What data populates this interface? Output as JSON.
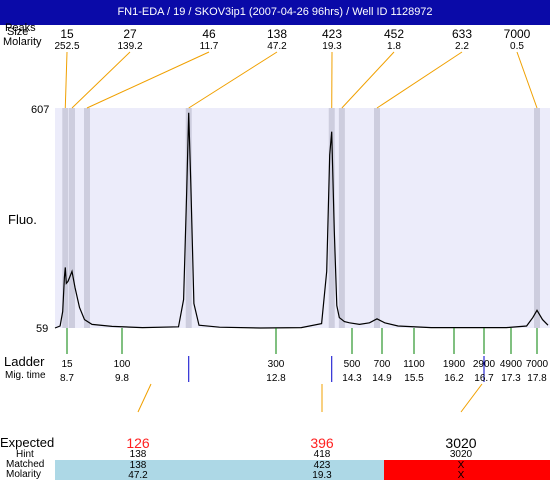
{
  "title": "FN1-EDA / 19 / SKOV3ip1 (2007-04-26 96hrs) / Well ID 1128972",
  "row_labels": {
    "peaks": "Peaks",
    "size": "Size",
    "molarity": "Molarity",
    "fluo": "Fluo.",
    "ladder": "Ladder",
    "mig_time": "Mig. time",
    "expected": "Expected",
    "hint": "Hint",
    "matched": "Matched",
    "bottom_molarity": "Molarity"
  },
  "y_axis": {
    "top_label": "607",
    "bottom_label": "59"
  },
  "top_peaks": [
    {
      "size": "15",
      "molarity": "252.5"
    },
    {
      "size": "27",
      "molarity": "139.2"
    },
    {
      "size": "46",
      "molarity": "11.7"
    },
    {
      "size": "138",
      "molarity": "47.2"
    },
    {
      "size": "423",
      "molarity": "19.3"
    },
    {
      "size": "452",
      "molarity": "1.8"
    },
    {
      "size": "633",
      "molarity": "2.2"
    },
    {
      "size": "7000",
      "molarity": "0.5"
    }
  ],
  "ladder": [
    {
      "size": "15",
      "mig": "8.7"
    },
    {
      "size": "100",
      "mig": "9.8"
    },
    {
      "size": "300",
      "mig": "12.8"
    },
    {
      "size": "500",
      "mig": "14.3"
    },
    {
      "size": "700",
      "mig": "14.9"
    },
    {
      "size": "1100",
      "mig": "15.5"
    },
    {
      "size": "1900",
      "mig": "16.2"
    },
    {
      "size": "2900",
      "mig": "16.7"
    },
    {
      "size": "4900",
      "mig": "17.3"
    },
    {
      "size": "7000",
      "mig": "17.8"
    }
  ],
  "expected": [
    {
      "value": "126",
      "hint": "138",
      "matched": "138",
      "molarity": "47.2",
      "color": "#ff2020",
      "row_color": "#add8e6"
    },
    {
      "value": "396",
      "hint": "418",
      "matched": "423",
      "molarity": "19.3",
      "color": "#ff2020",
      "row_color": "#add8e6"
    },
    {
      "value": "3020",
      "hint": "3020",
      "matched": "X",
      "molarity": "X",
      "color": "#000000",
      "row_color": "#ff0000"
    }
  ],
  "colors": {
    "title_bg": "#0a0aa8",
    "plot_bg": "#ececfa",
    "band": "#c8c8d8",
    "leader": "#f0a000",
    "ladder_tick": "#008000",
    "blue_tick": "#0000cc"
  },
  "chart_data": {
    "type": "line",
    "title": "",
    "xlabel": "",
    "ylabel": "Fluo.",
    "ylim": [
      59,
      607
    ],
    "x_scale": "migration time",
    "peak_markers": [
      {
        "size": "15",
        "mig": 8.6
      },
      {
        "size": "27",
        "mig": 8.8
      },
      {
        "size": "46",
        "mig": 9.1
      },
      {
        "size": "138",
        "mig": 11.1
      },
      {
        "size": "423",
        "mig": 13.9
      },
      {
        "size": "452",
        "mig": 14.1
      },
      {
        "size": "633",
        "mig": 14.8
      },
      {
        "size": "7000",
        "mig": 17.8
      }
    ],
    "trace": {
      "x": [
        8.0,
        8.3,
        8.45,
        8.55,
        8.6,
        8.66,
        8.72,
        8.8,
        8.86,
        8.95,
        9.05,
        9.2,
        9.6,
        10.2,
        10.9,
        11.0,
        11.06,
        11.1,
        11.14,
        11.2,
        11.3,
        11.7,
        12.5,
        13.3,
        13.7,
        13.8,
        13.86,
        13.9,
        13.95,
        14.0,
        14.05,
        14.15,
        14.25,
        14.45,
        14.65,
        14.8,
        14.95,
        15.2,
        15.8,
        16.6,
        17.2,
        17.6,
        17.72,
        17.8,
        17.9,
        18.0
      ],
      "y": [
        59,
        64,
        100,
        185,
        210,
        170,
        175,
        200,
        160,
        110,
        80,
        68,
        63,
        60,
        62,
        130,
        400,
        595,
        420,
        120,
        66,
        61,
        59,
        60,
        70,
        200,
        490,
        548,
        300,
        115,
        85,
        75,
        72,
        68,
        72,
        82,
        72,
        64,
        60,
        60,
        60,
        64,
        85,
        103,
        80,
        66
      ]
    }
  }
}
